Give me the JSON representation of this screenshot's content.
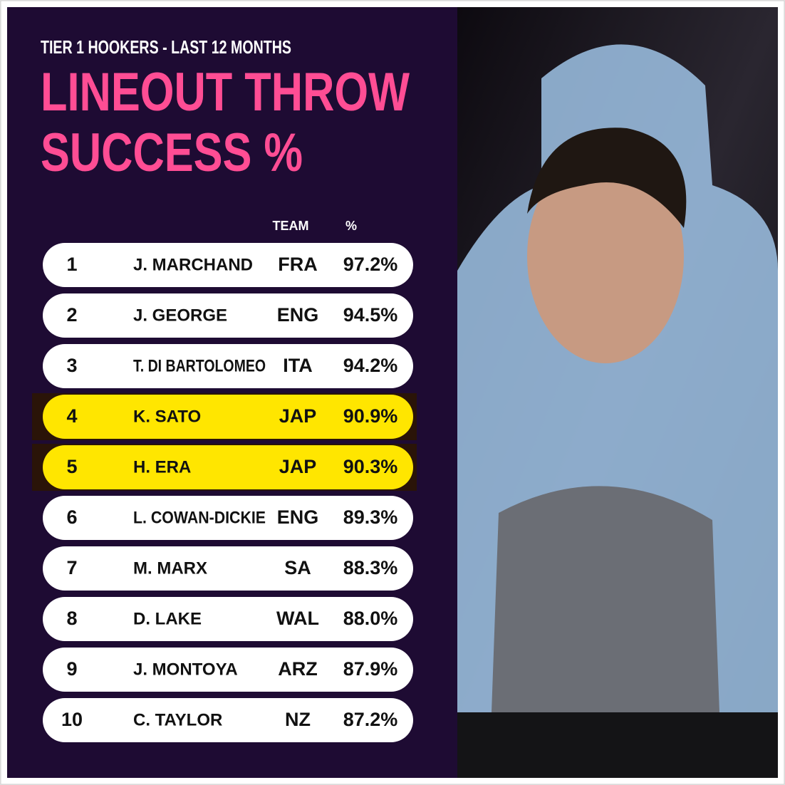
{
  "header": {
    "subtitle": "TIER 1 HOOKERS - LAST 12 MONTHS",
    "title_lines": [
      "LINEOUT THROW",
      "SUCCESS %"
    ]
  },
  "table": {
    "columns": [
      "TEAM",
      "%"
    ],
    "highlight_color": "#ffe600",
    "row_color": "#ffffff",
    "rows": [
      {
        "rank": 1,
        "name": "J. MARCHAND",
        "team": "FRA",
        "pct": "97.2%"
      },
      {
        "rank": 2,
        "name": "J. GEORGE",
        "team": "ENG",
        "pct": "94.5%"
      },
      {
        "rank": 3,
        "name": "T. DI BARTOLOMEO",
        "team": "ITA",
        "pct": "94.2%"
      },
      {
        "rank": 4,
        "name": "K. SATO",
        "team": "JAP",
        "pct": "90.9%",
        "highlight": true
      },
      {
        "rank": 5,
        "name": "H. ERA",
        "team": "JAP",
        "pct": "90.3%",
        "highlight": true
      },
      {
        "rank": 6,
        "name": "L. COWAN-DICKIE",
        "team": "ENG",
        "pct": "89.3%"
      },
      {
        "rank": 7,
        "name": "M. MARX",
        "team": "SA",
        "pct": "88.3%"
      },
      {
        "rank": 8,
        "name": "D. LAKE",
        "team": "WAL",
        "pct": "88.0%"
      },
      {
        "rank": 9,
        "name": "J. MONTOYA",
        "team": "ARZ",
        "pct": "87.9%"
      },
      {
        "rank": 10,
        "name": "C. TAYLOR",
        "team": "NZ",
        "pct": "87.2%"
      }
    ]
  }
}
